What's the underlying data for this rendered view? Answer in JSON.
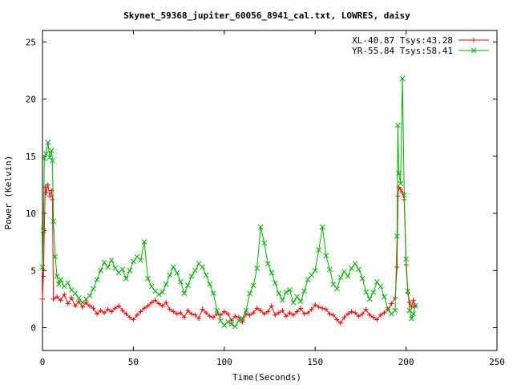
{
  "chart_data": {
    "type": "line",
    "title": "Skynet_59368_jupiter_60056_8941_cal.txt, LOWRES, daisy",
    "xlabel": "Time(Seconds)",
    "ylabel": "Power (Kelvin)",
    "xlim": [
      0,
      250
    ],
    "ylim": [
      -2,
      26
    ],
    "xticks": [
      0,
      50,
      100,
      150,
      200,
      250
    ],
    "yticks": [
      0,
      5,
      10,
      15,
      20,
      25
    ],
    "grid": false,
    "legend": "top-right",
    "series": [
      {
        "name": "XL-40.87 Tsys:43.28",
        "color": "#ff0000",
        "marker": "plus",
        "points": [
          [
            0,
            2.5
          ],
          [
            0.5,
            4.5
          ],
          [
            1,
            8.5
          ],
          [
            1.5,
            12.3
          ],
          [
            2,
            11.8
          ],
          [
            3,
            12.5
          ],
          [
            4,
            11.5
          ],
          [
            5,
            12.0
          ],
          [
            5.5,
            11.2
          ],
          [
            6,
            2.5
          ],
          [
            8,
            2.7
          ],
          [
            10,
            2.4
          ],
          [
            12,
            2.9
          ],
          [
            14,
            2.1
          ],
          [
            16,
            2.6
          ],
          [
            18,
            1.9
          ],
          [
            20,
            2.3
          ],
          [
            22,
            1.8
          ],
          [
            24,
            2.2
          ],
          [
            26,
            1.9
          ],
          [
            28,
            1.7
          ],
          [
            30,
            1.2
          ],
          [
            32,
            1.5
          ],
          [
            34,
            1.3
          ],
          [
            36,
            1.6
          ],
          [
            38,
            1.4
          ],
          [
            40,
            1.7
          ],
          [
            42,
            1.9
          ],
          [
            44,
            1.5
          ],
          [
            46,
            1.2
          ],
          [
            48,
            0.9
          ],
          [
            50,
            0.7
          ],
          [
            52,
            1.1
          ],
          [
            54,
            1.4
          ],
          [
            56,
            1.7
          ],
          [
            58,
            1.9
          ],
          [
            60,
            2.2
          ],
          [
            62,
            2.4
          ],
          [
            64,
            2.1
          ],
          [
            66,
            1.9
          ],
          [
            68,
            2.2
          ],
          [
            70,
            1.6
          ],
          [
            72,
            1.4
          ],
          [
            74,
            1.2
          ],
          [
            76,
            1.3
          ],
          [
            78,
            0.9
          ],
          [
            80,
            1.5
          ],
          [
            82,
            1.2
          ],
          [
            84,
            1.1
          ],
          [
            86,
            0.8
          ],
          [
            88,
            1.6
          ],
          [
            90,
            1.3
          ],
          [
            92,
            1.0
          ],
          [
            94,
            0.9
          ],
          [
            96,
            1.2
          ],
          [
            98,
            1.1
          ],
          [
            100,
            1.4
          ],
          [
            102,
            1.2
          ],
          [
            104,
            0.6
          ],
          [
            106,
            1.0
          ],
          [
            108,
            0.9
          ],
          [
            110,
            0.5
          ],
          [
            112,
            1.2
          ],
          [
            114,
            1.1
          ],
          [
            116,
            1.3
          ],
          [
            118,
            1.7
          ],
          [
            120,
            1.5
          ],
          [
            122,
            1.2
          ],
          [
            124,
            1.4
          ],
          [
            126,
            1.9
          ],
          [
            128,
            1.1
          ],
          [
            130,
            1.3
          ],
          [
            132,
            1.5
          ],
          [
            134,
            1.0
          ],
          [
            136,
            1.3
          ],
          [
            138,
            1.1
          ],
          [
            140,
            1.4
          ],
          [
            142,
            1.7
          ],
          [
            144,
            1.2
          ],
          [
            146,
            1.3
          ],
          [
            148,
            1.6
          ],
          [
            150,
            2.0
          ],
          [
            152,
            1.8
          ],
          [
            154,
            1.7
          ],
          [
            156,
            1.6
          ],
          [
            158,
            1.2
          ],
          [
            160,
            1.1
          ],
          [
            162,
            0.7
          ],
          [
            164,
            0.4
          ],
          [
            166,
            0.9
          ],
          [
            168,
            1.2
          ],
          [
            170,
            1.4
          ],
          [
            172,
            1.3
          ],
          [
            174,
            1.0
          ],
          [
            176,
            1.2
          ],
          [
            178,
            1.6
          ],
          [
            180,
            1.1
          ],
          [
            182,
            0.9
          ],
          [
            184,
            0.7
          ],
          [
            186,
            1.1
          ],
          [
            188,
            1.3
          ],
          [
            190,
            1.6
          ],
          [
            192,
            2.1
          ],
          [
            194,
            2.6
          ],
          [
            195,
            5.3
          ],
          [
            195.5,
            11.5
          ],
          [
            196,
            12.3
          ],
          [
            197,
            12.1
          ],
          [
            198,
            11.8
          ],
          [
            199,
            11.2
          ],
          [
            200,
            5.5
          ],
          [
            201,
            3.0
          ],
          [
            202,
            2.2
          ],
          [
            203,
            1.8
          ],
          [
            204,
            2.4
          ],
          [
            205,
            1.9
          ]
        ]
      },
      {
        "name": "YR-55.84 Tsys:58.41",
        "color": "#00b000",
        "marker": "cross",
        "points": [
          [
            0,
            5.3
          ],
          [
            0.5,
            8.5
          ],
          [
            1,
            14.8
          ],
          [
            2,
            15.2
          ],
          [
            3,
            16.2
          ],
          [
            4,
            14.9
          ],
          [
            5,
            15.5
          ],
          [
            5.5,
            14.6
          ],
          [
            6,
            9.3
          ],
          [
            7,
            6.2
          ],
          [
            8,
            4.5
          ],
          [
            9,
            3.8
          ],
          [
            10,
            4.2
          ],
          [
            12,
            3.6
          ],
          [
            14,
            3.9
          ],
          [
            16,
            3.3
          ],
          [
            18,
            3.0
          ],
          [
            20,
            2.6
          ],
          [
            22,
            2.2
          ],
          [
            24,
            2.5
          ],
          [
            26,
            2.8
          ],
          [
            28,
            3.4
          ],
          [
            30,
            4.2
          ],
          [
            32,
            5.0
          ],
          [
            34,
            5.7
          ],
          [
            36,
            5.3
          ],
          [
            38,
            5.9
          ],
          [
            40,
            5.2
          ],
          [
            42,
            4.8
          ],
          [
            44,
            5.1
          ],
          [
            46,
            4.3
          ],
          [
            48,
            5.0
          ],
          [
            50,
            5.8
          ],
          [
            52,
            6.2
          ],
          [
            54,
            5.9
          ],
          [
            56,
            7.5
          ],
          [
            58,
            4.3
          ],
          [
            60,
            3.6
          ],
          [
            62,
            3.2
          ],
          [
            64,
            2.9
          ],
          [
            66,
            3.1
          ],
          [
            68,
            3.8
          ],
          [
            70,
            4.6
          ],
          [
            72,
            5.3
          ],
          [
            74,
            4.8
          ],
          [
            76,
            4.0
          ],
          [
            78,
            3.0
          ],
          [
            80,
            3.7
          ],
          [
            82,
            4.5
          ],
          [
            84,
            5.0
          ],
          [
            86,
            5.6
          ],
          [
            88,
            5.3
          ],
          [
            90,
            4.6
          ],
          [
            92,
            3.8
          ],
          [
            94,
            3.0
          ],
          [
            96,
            1.5
          ],
          [
            98,
            0.6
          ],
          [
            100,
            0.2
          ],
          [
            102,
            0.5
          ],
          [
            104,
            0.3
          ],
          [
            106,
            0.1
          ],
          [
            108,
            0.6
          ],
          [
            110,
            0.8
          ],
          [
            112,
            1.5
          ],
          [
            114,
            3.0
          ],
          [
            116,
            3.7
          ],
          [
            118,
            5.2
          ],
          [
            120,
            8.8
          ],
          [
            122,
            7.4
          ],
          [
            124,
            5.6
          ],
          [
            126,
            4.8
          ],
          [
            128,
            3.9
          ],
          [
            130,
            3.0
          ],
          [
            132,
            2.4
          ],
          [
            134,
            3.1
          ],
          [
            136,
            3.3
          ],
          [
            138,
            2.2
          ],
          [
            140,
            2.7
          ],
          [
            142,
            2.3
          ],
          [
            144,
            3.2
          ],
          [
            146,
            4.2
          ],
          [
            148,
            4.6
          ],
          [
            150,
            5.0
          ],
          [
            152,
            6.8
          ],
          [
            154,
            8.8
          ],
          [
            156,
            6.3
          ],
          [
            158,
            5.1
          ],
          [
            160,
            3.8
          ],
          [
            162,
            3.4
          ],
          [
            164,
            4.4
          ],
          [
            166,
            4.9
          ],
          [
            168,
            4.5
          ],
          [
            170,
            5.2
          ],
          [
            172,
            5.6
          ],
          [
            174,
            5.1
          ],
          [
            176,
            4.3
          ],
          [
            178,
            3.1
          ],
          [
            180,
            2.5
          ],
          [
            182,
            3.1
          ],
          [
            184,
            4.0
          ],
          [
            186,
            3.6
          ],
          [
            188,
            2.7
          ],
          [
            190,
            1.6
          ],
          [
            192,
            1.2
          ],
          [
            194,
            1.5
          ],
          [
            195,
            8.0
          ],
          [
            195.5,
            17.7
          ],
          [
            196,
            13.5
          ],
          [
            197,
            12.6
          ],
          [
            198,
            21.8
          ],
          [
            199,
            11.6
          ],
          [
            200,
            6.0
          ],
          [
            201,
            3.2
          ],
          [
            202,
            1.5
          ],
          [
            203,
            0.8
          ],
          [
            204,
            1.2
          ],
          [
            205,
            1.9
          ]
        ]
      }
    ]
  }
}
